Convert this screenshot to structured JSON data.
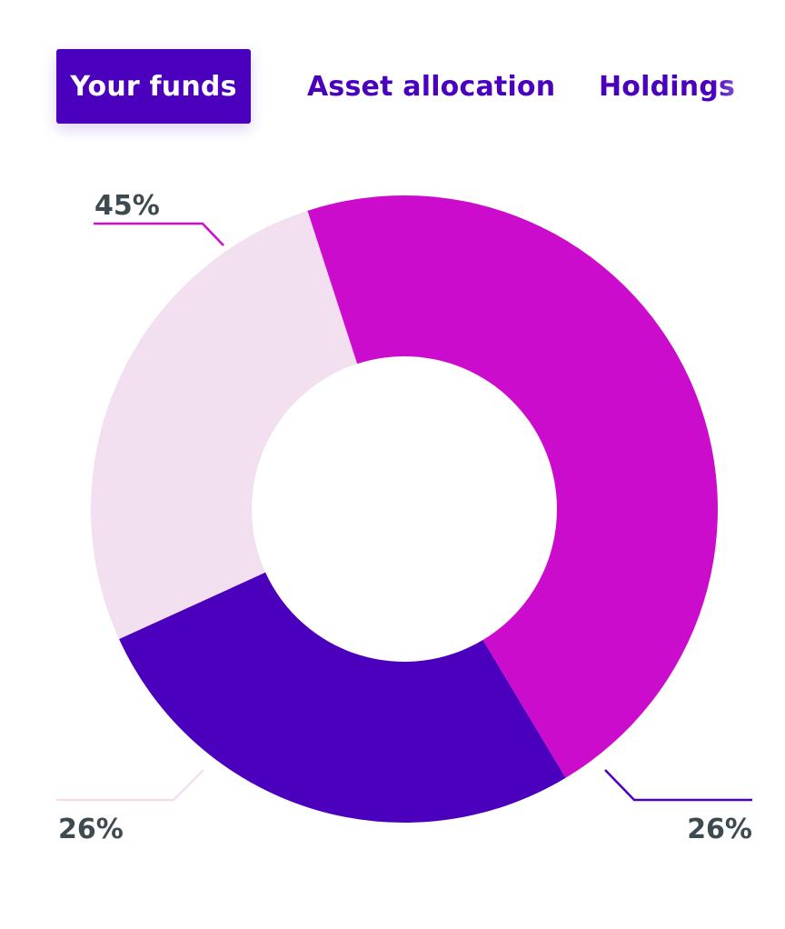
{
  "tabs": [
    {
      "label": "Your funds",
      "active": true
    },
    {
      "label": "Asset allocation",
      "active": false
    },
    {
      "label": "Holdings",
      "active": false
    }
  ],
  "chart_data": {
    "type": "pie",
    "donut": true,
    "title": "",
    "start_angle_deg": -108,
    "direction": "clockwise",
    "slices": [
      {
        "label": "45%",
        "value": 45,
        "color": "#cc0ccc"
      },
      {
        "label": "26%",
        "value": 26,
        "color": "#4a00bd"
      },
      {
        "label": "26%",
        "value": 26,
        "color": "#f2dff0"
      }
    ],
    "legend": "none"
  }
}
